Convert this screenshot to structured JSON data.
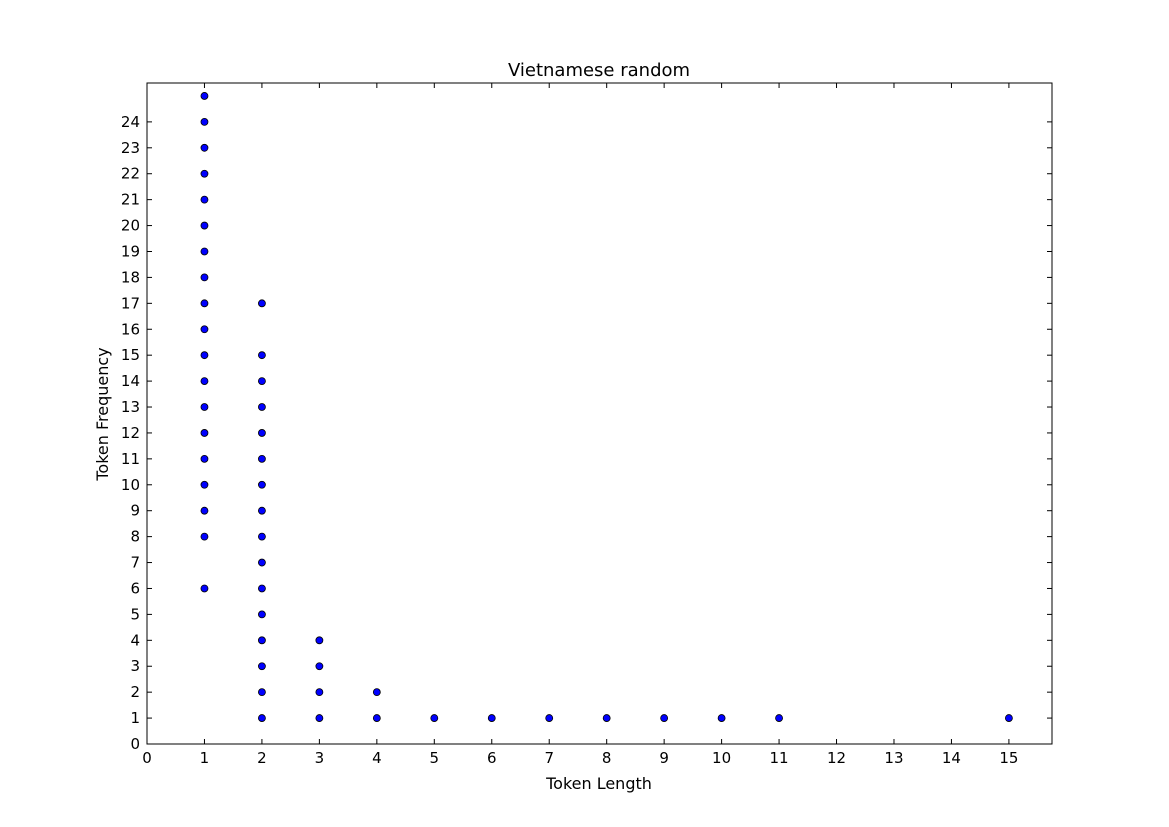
{
  "chart_data": {
    "type": "scatter",
    "title": "Vietnamese random",
    "xlabel": "Token Length",
    "ylabel": "Token Frequency",
    "xlim": [
      0,
      15.75
    ],
    "ylim": [
      0,
      25.5
    ],
    "xticks": [
      0,
      1,
      2,
      3,
      4,
      5,
      6,
      7,
      8,
      9,
      10,
      11,
      12,
      13,
      14,
      15
    ],
    "yticks": [
      0,
      1,
      2,
      3,
      4,
      5,
      6,
      7,
      8,
      9,
      10,
      11,
      12,
      13,
      14,
      15,
      16,
      17,
      18,
      19,
      20,
      21,
      22,
      23,
      24
    ],
    "grid": false,
    "marker_color": "#0000ff",
    "marker_edge_color": "#000000",
    "points": [
      [
        1,
        6
      ],
      [
        1,
        8
      ],
      [
        1,
        9
      ],
      [
        1,
        10
      ],
      [
        1,
        11
      ],
      [
        1,
        12
      ],
      [
        1,
        13
      ],
      [
        1,
        14
      ],
      [
        1,
        15
      ],
      [
        1,
        16
      ],
      [
        1,
        17
      ],
      [
        1,
        18
      ],
      [
        1,
        19
      ],
      [
        1,
        20
      ],
      [
        1,
        21
      ],
      [
        1,
        22
      ],
      [
        1,
        23
      ],
      [
        1,
        24
      ],
      [
        1,
        25
      ],
      [
        2,
        1
      ],
      [
        2,
        2
      ],
      [
        2,
        3
      ],
      [
        2,
        4
      ],
      [
        2,
        5
      ],
      [
        2,
        6
      ],
      [
        2,
        7
      ],
      [
        2,
        8
      ],
      [
        2,
        9
      ],
      [
        2,
        10
      ],
      [
        2,
        11
      ],
      [
        2,
        12
      ],
      [
        2,
        13
      ],
      [
        2,
        14
      ],
      [
        2,
        15
      ],
      [
        2,
        17
      ],
      [
        3,
        1
      ],
      [
        3,
        2
      ],
      [
        3,
        3
      ],
      [
        3,
        4
      ],
      [
        4,
        1
      ],
      [
        4,
        2
      ],
      [
        5,
        1
      ],
      [
        6,
        1
      ],
      [
        7,
        1
      ],
      [
        8,
        1
      ],
      [
        9,
        1
      ],
      [
        10,
        1
      ],
      [
        11,
        1
      ],
      [
        15,
        1
      ]
    ]
  }
}
